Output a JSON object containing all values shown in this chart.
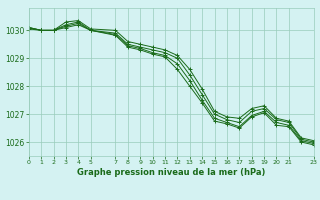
{
  "title": "Graphe pression niveau de la mer (hPa)",
  "bg_color": "#d4f2f2",
  "grid_color": "#99ccbb",
  "line_color": "#1a6b1a",
  "xlim": [
    0,
    23
  ],
  "ylim": [
    1025.5,
    1030.8
  ],
  "yticks": [
    1026,
    1027,
    1028,
    1029,
    1030
  ],
  "xticks": [
    0,
    1,
    2,
    3,
    4,
    5,
    7,
    8,
    9,
    10,
    11,
    12,
    13,
    14,
    15,
    16,
    17,
    18,
    19,
    20,
    21,
    23
  ],
  "series": [
    [
      1030.1,
      1030.0,
      1030.0,
      1030.2,
      1030.3,
      1030.0,
      1029.9,
      1029.5,
      1029.4,
      1029.3,
      1029.2,
      1029.0,
      1028.4,
      1027.7,
      1027.0,
      1026.8,
      1026.7,
      1027.1,
      1027.2,
      1026.8,
      1026.7,
      1026.1,
      1026.0
    ],
    [
      1030.1,
      1030.0,
      1030.0,
      1030.1,
      1030.2,
      1030.0,
      1029.85,
      1029.45,
      1029.35,
      1029.2,
      1029.1,
      1028.8,
      1028.2,
      1027.5,
      1026.85,
      1026.7,
      1026.55,
      1026.95,
      1027.1,
      1026.7,
      1026.6,
      1026.05,
      1025.95
    ],
    [
      1030.05,
      1030.0,
      1030.0,
      1030.15,
      1030.25,
      1030.0,
      1029.82,
      1029.4,
      1029.3,
      1029.15,
      1029.05,
      1028.6,
      1028.0,
      1027.4,
      1026.75,
      1026.65,
      1026.5,
      1026.9,
      1027.05,
      1026.6,
      1026.55,
      1026.0,
      1025.9
    ],
    [
      1030.1,
      1030.0,
      1030.0,
      1030.3,
      1030.35,
      1030.05,
      1030.0,
      1029.6,
      1029.5,
      1029.4,
      1029.3,
      1029.1,
      1028.6,
      1027.9,
      1027.1,
      1026.9,
      1026.85,
      1027.2,
      1027.3,
      1026.85,
      1026.75,
      1026.15,
      1026.05
    ]
  ],
  "x_hours": [
    0,
    1,
    2,
    3,
    4,
    5,
    7,
    8,
    9,
    10,
    11,
    12,
    13,
    14,
    15,
    16,
    17,
    18,
    19,
    20,
    21,
    22,
    23
  ]
}
